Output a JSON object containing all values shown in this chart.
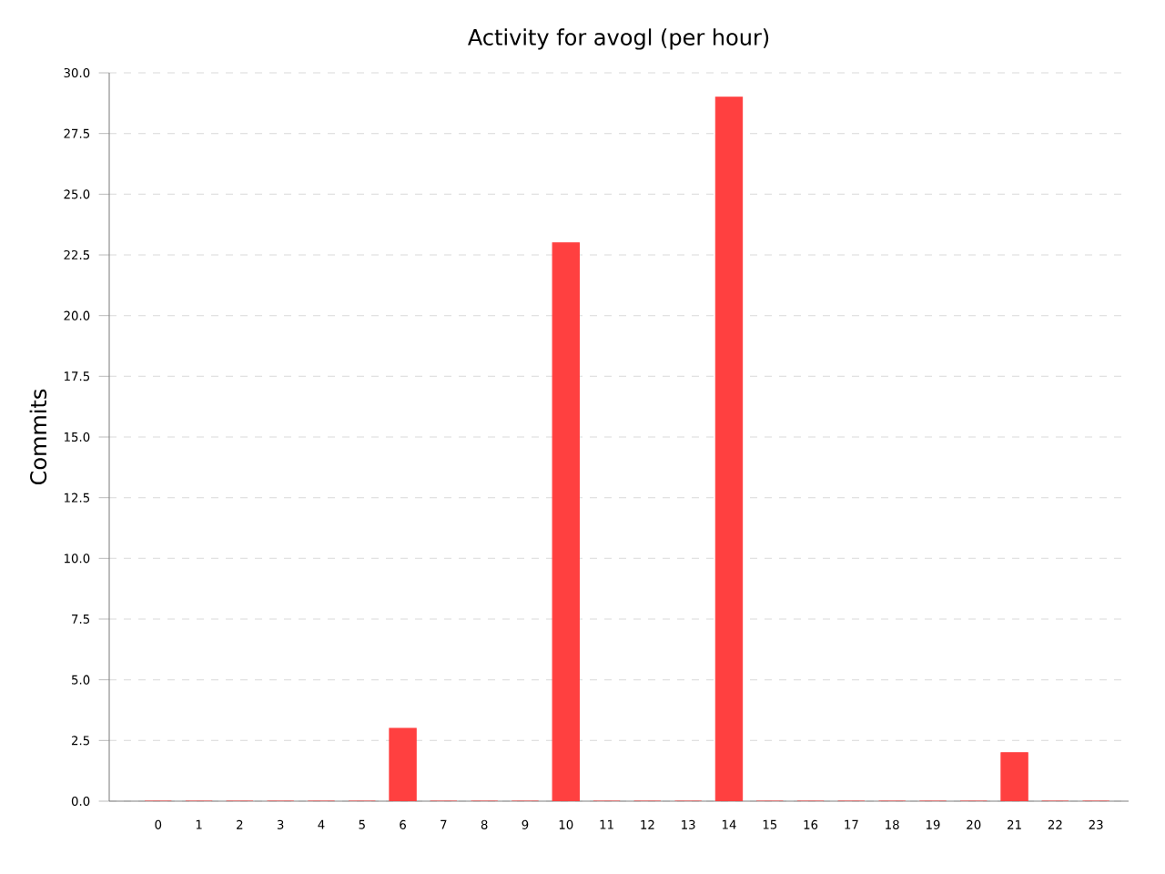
{
  "chart_data": {
    "type": "bar",
    "title": "Activity for avogl (per hour)",
    "ylabel": "Commits",
    "categories": [
      "0",
      "1",
      "2",
      "3",
      "4",
      "5",
      "6",
      "7",
      "8",
      "9",
      "10",
      "11",
      "12",
      "13",
      "14",
      "15",
      "16",
      "17",
      "18",
      "19",
      "20",
      "21",
      "22",
      "23"
    ],
    "values": [
      0,
      0,
      0,
      0,
      0,
      0,
      3,
      0,
      0,
      0,
      23,
      0,
      0,
      0,
      29,
      0,
      0,
      0,
      0,
      0,
      0,
      2,
      0,
      0
    ],
    "color": "#ff4040",
    "ylim": [
      0,
      30
    ],
    "yticks": [
      {
        "value": 0,
        "label": "0.0"
      },
      {
        "value": 2.5,
        "label": "2.5"
      },
      {
        "value": 5,
        "label": "5.0"
      },
      {
        "value": 7.5,
        "label": "7.5"
      },
      {
        "value": 10,
        "label": "10.0"
      },
      {
        "value": 12.5,
        "label": "12.5"
      },
      {
        "value": 15,
        "label": "15.0"
      },
      {
        "value": 17.5,
        "label": "17.5"
      },
      {
        "value": 20,
        "label": "20.0"
      },
      {
        "value": 22.5,
        "label": "22.5"
      },
      {
        "value": 25,
        "label": "25.0"
      },
      {
        "value": 27.5,
        "label": "27.5"
      },
      {
        "value": 30,
        "label": "30.0"
      }
    ],
    "grid": "y"
  }
}
